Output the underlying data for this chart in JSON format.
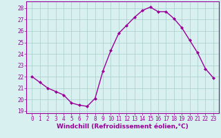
{
  "x": [
    0,
    1,
    2,
    3,
    4,
    5,
    6,
    7,
    8,
    9,
    10,
    11,
    12,
    13,
    14,
    15,
    16,
    17,
    18,
    19,
    20,
    21,
    22,
    23
  ],
  "y": [
    22.0,
    21.5,
    21.0,
    20.7,
    20.4,
    19.7,
    19.5,
    19.4,
    20.1,
    22.5,
    24.3,
    25.8,
    26.5,
    27.2,
    27.8,
    28.1,
    27.7,
    27.7,
    27.1,
    26.3,
    25.2,
    24.1,
    22.7,
    21.9
  ],
  "line_color": "#990099",
  "marker": "D",
  "marker_size": 2,
  "linewidth": 1.0,
  "xlabel": "Windchill (Refroidissement éolien,°C)",
  "xlabel_fontsize": 6.5,
  "xlabel_color": "#990099",
  "ylim": [
    18.8,
    28.6
  ],
  "yticks": [
    19,
    20,
    21,
    22,
    23,
    24,
    25,
    26,
    27,
    28
  ],
  "xticks": [
    0,
    1,
    2,
    3,
    4,
    5,
    6,
    7,
    8,
    9,
    10,
    11,
    12,
    13,
    14,
    15,
    16,
    17,
    18,
    19,
    20,
    21,
    22,
    23
  ],
  "background_color": "#d8f0f0",
  "grid_color": "#aacccc",
  "tick_fontsize": 5.5,
  "tick_color": "#990099",
  "spine_color": "#990099"
}
